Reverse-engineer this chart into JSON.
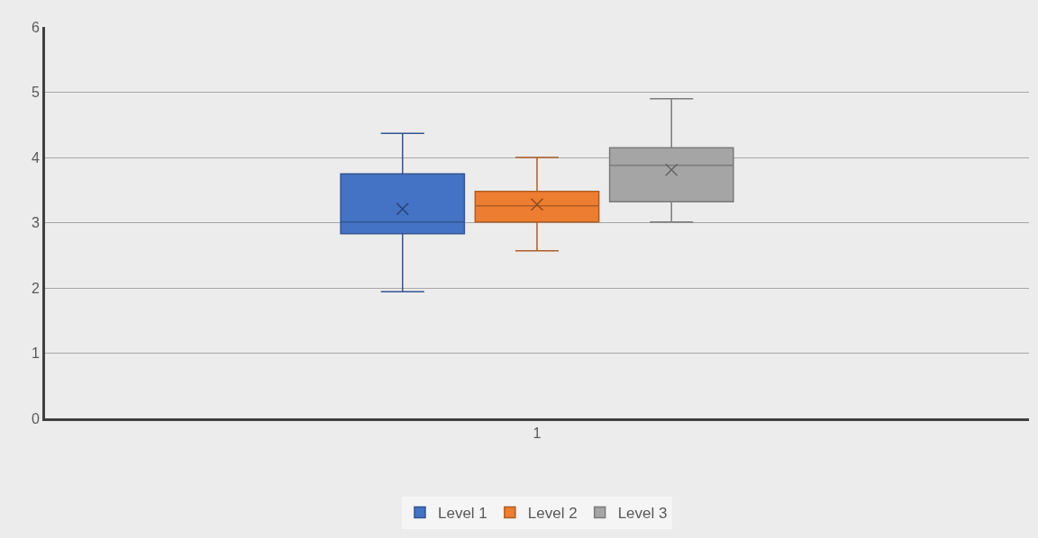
{
  "chart_data": {
    "type": "box",
    "categories": [
      "1"
    ],
    "series": [
      {
        "name": "Level 1",
        "color": "#4472c4",
        "boxes": [
          {
            "low": 1.94,
            "q1": 2.83,
            "median": 3.01,
            "q3": 3.75,
            "high": 4.37,
            "mean": 3.21
          }
        ]
      },
      {
        "name": "Level 2",
        "color": "#ed7d31",
        "boxes": [
          {
            "low": 2.57,
            "q1": 3.01,
            "median": 3.26,
            "q3": 3.48,
            "high": 4.0,
            "mean": 3.28
          }
        ]
      },
      {
        "name": "Level 3",
        "color": "#a5a5a5",
        "boxes": [
          {
            "low": 3.01,
            "q1": 3.32,
            "median": 3.88,
            "q3": 4.15,
            "high": 4.9,
            "mean": 3.81
          }
        ]
      }
    ],
    "ylim": [
      0,
      6
    ],
    "yticks": [
      0,
      1,
      2,
      3,
      4,
      5,
      6
    ],
    "grid": "y",
    "legend": "bottom",
    "marker": "cross"
  }
}
